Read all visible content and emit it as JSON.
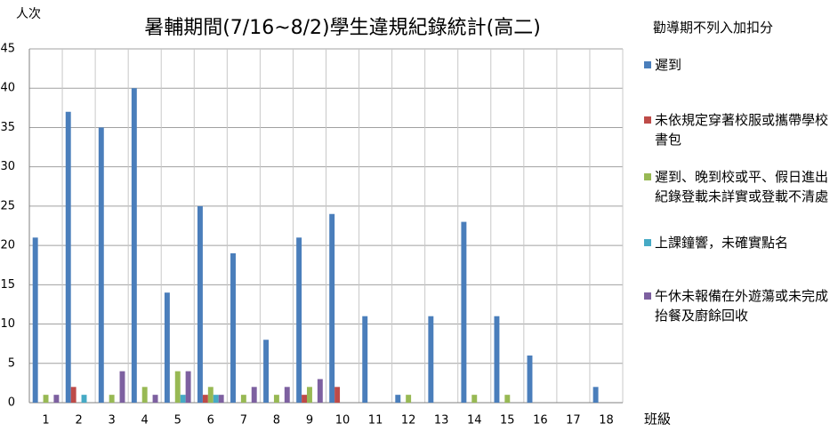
{
  "chart_data": {
    "type": "bar",
    "title": "暑輔期間(7/16~8/2)學生違規紀錄統計(高二)",
    "y_label": "人次",
    "x_label": "班級",
    "legend_title": "勸導期不列入加扣分",
    "categories": [
      "1",
      "2",
      "3",
      "4",
      "5",
      "6",
      "7",
      "8",
      "9",
      "10",
      "11",
      "12",
      "13",
      "14",
      "15",
      "16",
      "17",
      "18"
    ],
    "series": [
      {
        "name": "遲到",
        "color": "#4a7ebb",
        "values": [
          21,
          37,
          35,
          40,
          14,
          25,
          19,
          8,
          21,
          24,
          11,
          1,
          11,
          23,
          11,
          6,
          0,
          2
        ]
      },
      {
        "name": "未依規定穿著校服或攜帶學校書包",
        "color": "#be4b48",
        "values": [
          0,
          2,
          0,
          0,
          0,
          1,
          0,
          0,
          1,
          2,
          0,
          0,
          0,
          0,
          0,
          0,
          0,
          0
        ]
      },
      {
        "name": "遲到、晚到校或平、假日進出紀錄登載未詳實或登載不清處",
        "color": "#98b954",
        "values": [
          1,
          0,
          1,
          2,
          4,
          2,
          1,
          1,
          2,
          0,
          0,
          1,
          0,
          1,
          1,
          0,
          0,
          0
        ]
      },
      {
        "name": "上課鐘響，未確實點名",
        "color": "#46aac5",
        "values": [
          0,
          1,
          0,
          0,
          1,
          1,
          0,
          0,
          0,
          0,
          0,
          0,
          0,
          0,
          0,
          0,
          0,
          0
        ]
      },
      {
        "name": "午休未報備在外遊蕩或未完成抬餐及廚餘回收",
        "color": "#7d60a0",
        "values": [
          1,
          0,
          4,
          1,
          4,
          1,
          2,
          2,
          3,
          0,
          0,
          0,
          0,
          0,
          0,
          0,
          0,
          0
        ]
      }
    ],
    "ylim": [
      0,
      45
    ],
    "yticks": [
      0,
      5,
      10,
      15,
      20,
      25,
      30,
      35,
      40,
      45
    ],
    "grid": true
  }
}
